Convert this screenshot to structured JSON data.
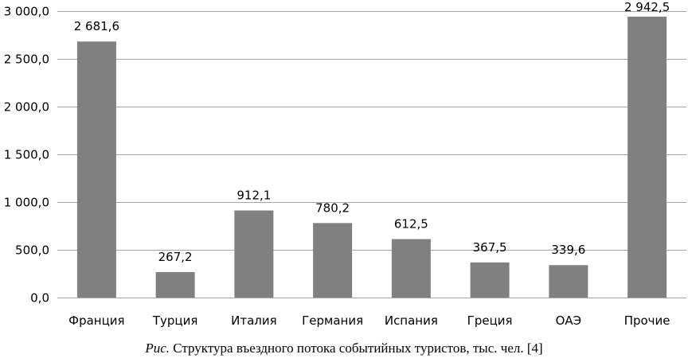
{
  "chart_data": {
    "type": "bar",
    "categories": [
      "Франция",
      "Турция",
      "Италия",
      "Германия",
      "Испания",
      "Греция",
      "ОАЭ",
      "Прочие"
    ],
    "values": [
      2681.6,
      267.2,
      912.1,
      780.2,
      612.5,
      367.5,
      339.6,
      2942.5
    ],
    "value_labels": [
      "2 681,6",
      "267,2",
      "912,1",
      "780,2",
      "612,5",
      "367,5",
      "339,6",
      "2 942,5"
    ],
    "ylim": [
      0,
      3000
    ],
    "yticks": [
      0,
      500,
      1000,
      1500,
      2000,
      2500,
      3000
    ],
    "ytick_labels": [
      "0,0",
      "500,0",
      "1 000,0",
      "1 500,0",
      "2 000,0",
      "2 500,0",
      "3 000,0"
    ],
    "grid": true,
    "bar_color": "#808080",
    "grid_color": "#a6a6a6"
  },
  "caption": {
    "prefix": "Рис.",
    "text": "Структура въездного потока событийных туристов, тыс. чел. [4]"
  }
}
